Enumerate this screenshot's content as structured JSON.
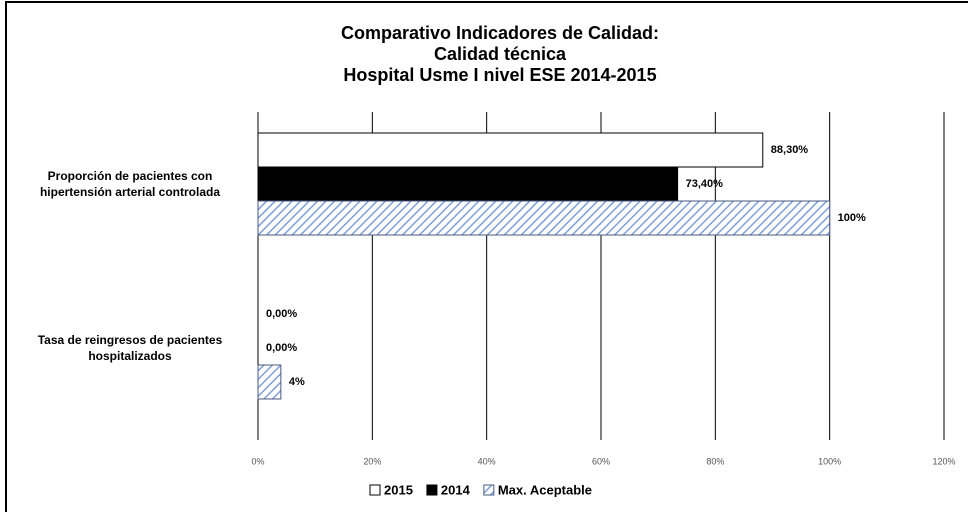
{
  "chart_data": {
    "type": "hbar",
    "title": [
      "Comparativo Indicadores de Calidad:",
      "Calidad técnica",
      "Hospital Usme I nivel ESE 2014-2015"
    ],
    "categories": [
      "Proporción de pacientes con hipertensión arterial controlada",
      "Tasa de reingresos de pacientes hospitalizados"
    ],
    "series": [
      {
        "name": "2015",
        "color": "#ffffff",
        "values": [
          88.3,
          0
        ],
        "value_labels": [
          "88,30%",
          "0,00%"
        ]
      },
      {
        "name": "2014",
        "color": "#000000",
        "values": [
          73.4,
          0
        ],
        "value_labels": [
          "73,40%",
          "0,00%"
        ]
      },
      {
        "name": "Max. Aceptable",
        "color": "#4472c4",
        "hatch": true,
        "values": [
          100,
          4
        ],
        "value_labels": [
          "100%",
          "4%"
        ]
      }
    ],
    "xlim": [
      0,
      120
    ],
    "xticks": [
      {
        "value": 0,
        "label": "0%"
      },
      {
        "value": 20,
        "label": "20%"
      },
      {
        "value": 40,
        "label": "40%"
      },
      {
        "value": 60,
        "label": "60%"
      },
      {
        "value": 80,
        "label": "80%"
      },
      {
        "value": 100,
        "label": "100%"
      },
      {
        "value": 120,
        "label": "120%"
      }
    ],
    "grid": true,
    "legend": "bottom"
  }
}
